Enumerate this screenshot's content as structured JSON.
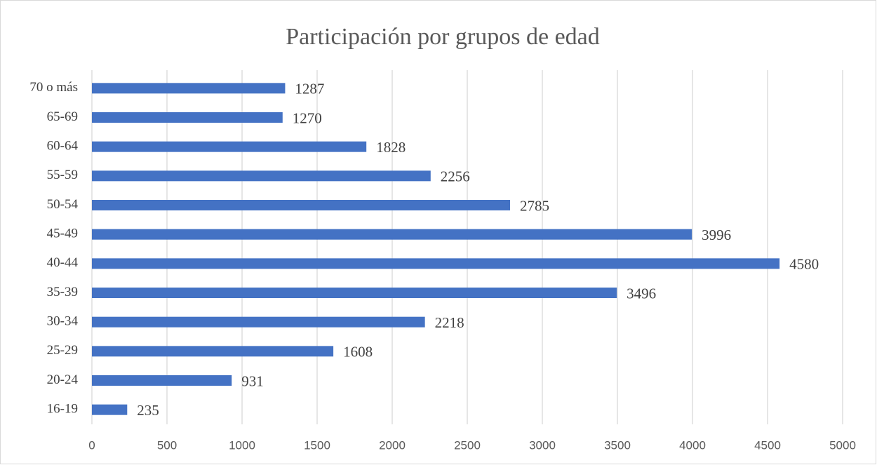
{
  "chart_data": {
    "type": "bar",
    "orientation": "horizontal",
    "title": "Participación por grupos de edad",
    "categories": [
      "16-19",
      "20-24",
      "25-29",
      "30-34",
      "35-39",
      "40-44",
      "45-49",
      "50-54",
      "55-59",
      "60-64",
      "65-69",
      "70 o más"
    ],
    "values": [
      235,
      931,
      1608,
      2218,
      3496,
      4580,
      3996,
      2785,
      2256,
      1828,
      1270,
      1287
    ],
    "color": "#4472c4",
    "xlim": [
      0,
      5000
    ],
    "xticks": [
      0,
      500,
      1000,
      1500,
      2000,
      2500,
      3000,
      3500,
      4000,
      4500,
      5000
    ],
    "grid": true
  }
}
